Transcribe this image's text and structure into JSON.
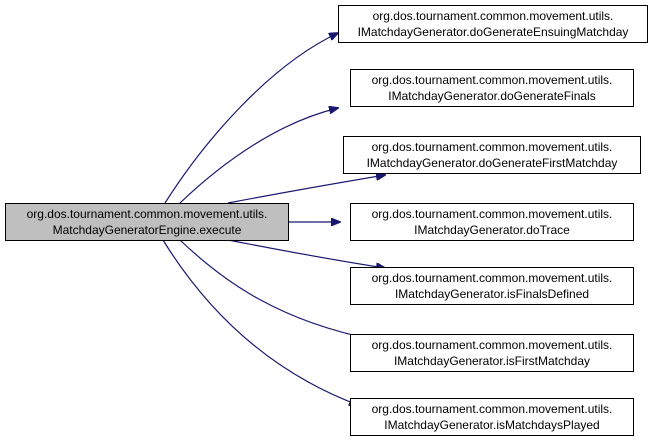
{
  "colors": {
    "edge": "#191970",
    "root_fill": "#bfbfbf",
    "node_fill": "#ffffff",
    "node_border": "#000000"
  },
  "root": {
    "line1": "org.dos.tournament.common.movement.utils.",
    "line2": "MatchdayGeneratorEngine.execute"
  },
  "callees": [
    {
      "line1": "org.dos.tournament.common.movement.utils.",
      "line2": "IMatchdayGenerator.doGenerateEnsuingMatchday"
    },
    {
      "line1": "org.dos.tournament.common.movement.utils.",
      "line2": "IMatchdayGenerator.doGenerateFinals"
    },
    {
      "line1": "org.dos.tournament.common.movement.utils.",
      "line2": "IMatchdayGenerator.doGenerateFirstMatchday"
    },
    {
      "line1": "org.dos.tournament.common.movement.utils.",
      "line2": "IMatchdayGenerator.doTrace"
    },
    {
      "line1": "org.dos.tournament.common.movement.utils.",
      "line2": "IMatchdayGenerator.isFinalsDefined"
    },
    {
      "line1": "org.dos.tournament.common.movement.utils.",
      "line2": "IMatchdayGenerator.isFirstMatchday"
    },
    {
      "line1": "org.dos.tournament.common.movement.utils.",
      "line2": "IMatchdayGenerator.isMatchdaysPlayed"
    }
  ]
}
